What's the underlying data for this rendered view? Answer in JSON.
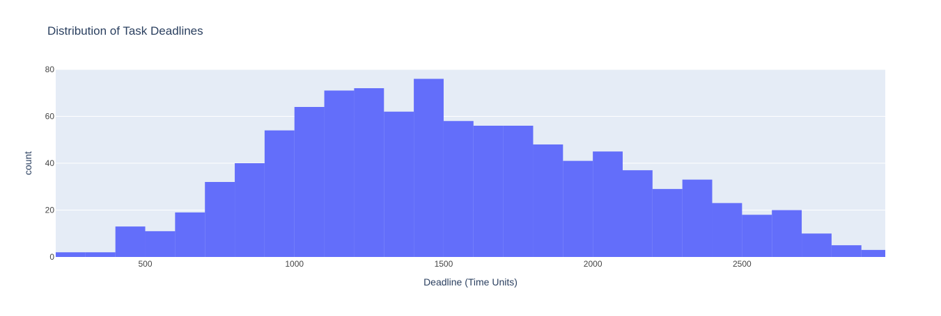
{
  "chart_data": {
    "type": "bar",
    "title": "Distribution of Task Deadlines",
    "xlabel": "Deadline (Time Units)",
    "ylabel": "count",
    "xlim": [
      200,
      2980
    ],
    "ylim": [
      0,
      80
    ],
    "bin_size": 100,
    "x": [
      200,
      300,
      400,
      500,
      600,
      700,
      800,
      900,
      1000,
      1100,
      1200,
      1300,
      1400,
      1500,
      1600,
      1700,
      1800,
      1900,
      2000,
      2100,
      2200,
      2300,
      2400,
      2500,
      2600,
      2700,
      2800,
      2900
    ],
    "values": [
      2,
      2,
      13,
      11,
      19,
      32,
      40,
      54,
      64,
      71,
      72,
      62,
      76,
      58,
      56,
      56,
      48,
      41,
      45,
      37,
      29,
      33,
      23,
      18,
      20,
      10,
      5,
      3
    ],
    "x_ticks": [
      500,
      1000,
      1500,
      2000,
      2500
    ],
    "x_tick_labels": [
      "500",
      "1000",
      "1500",
      "2000",
      "2500"
    ],
    "y_ticks": [
      0,
      20,
      40,
      60,
      80
    ],
    "y_tick_labels": [
      "0",
      "20",
      "40",
      "60",
      "80"
    ],
    "grid": true,
    "legend": "none",
    "colors": {
      "bar": "#636efa",
      "plot_bg": "#e5ecf6",
      "grid": "#ffffff",
      "text": "#2a3f5f",
      "tick_text": "#444444"
    }
  }
}
